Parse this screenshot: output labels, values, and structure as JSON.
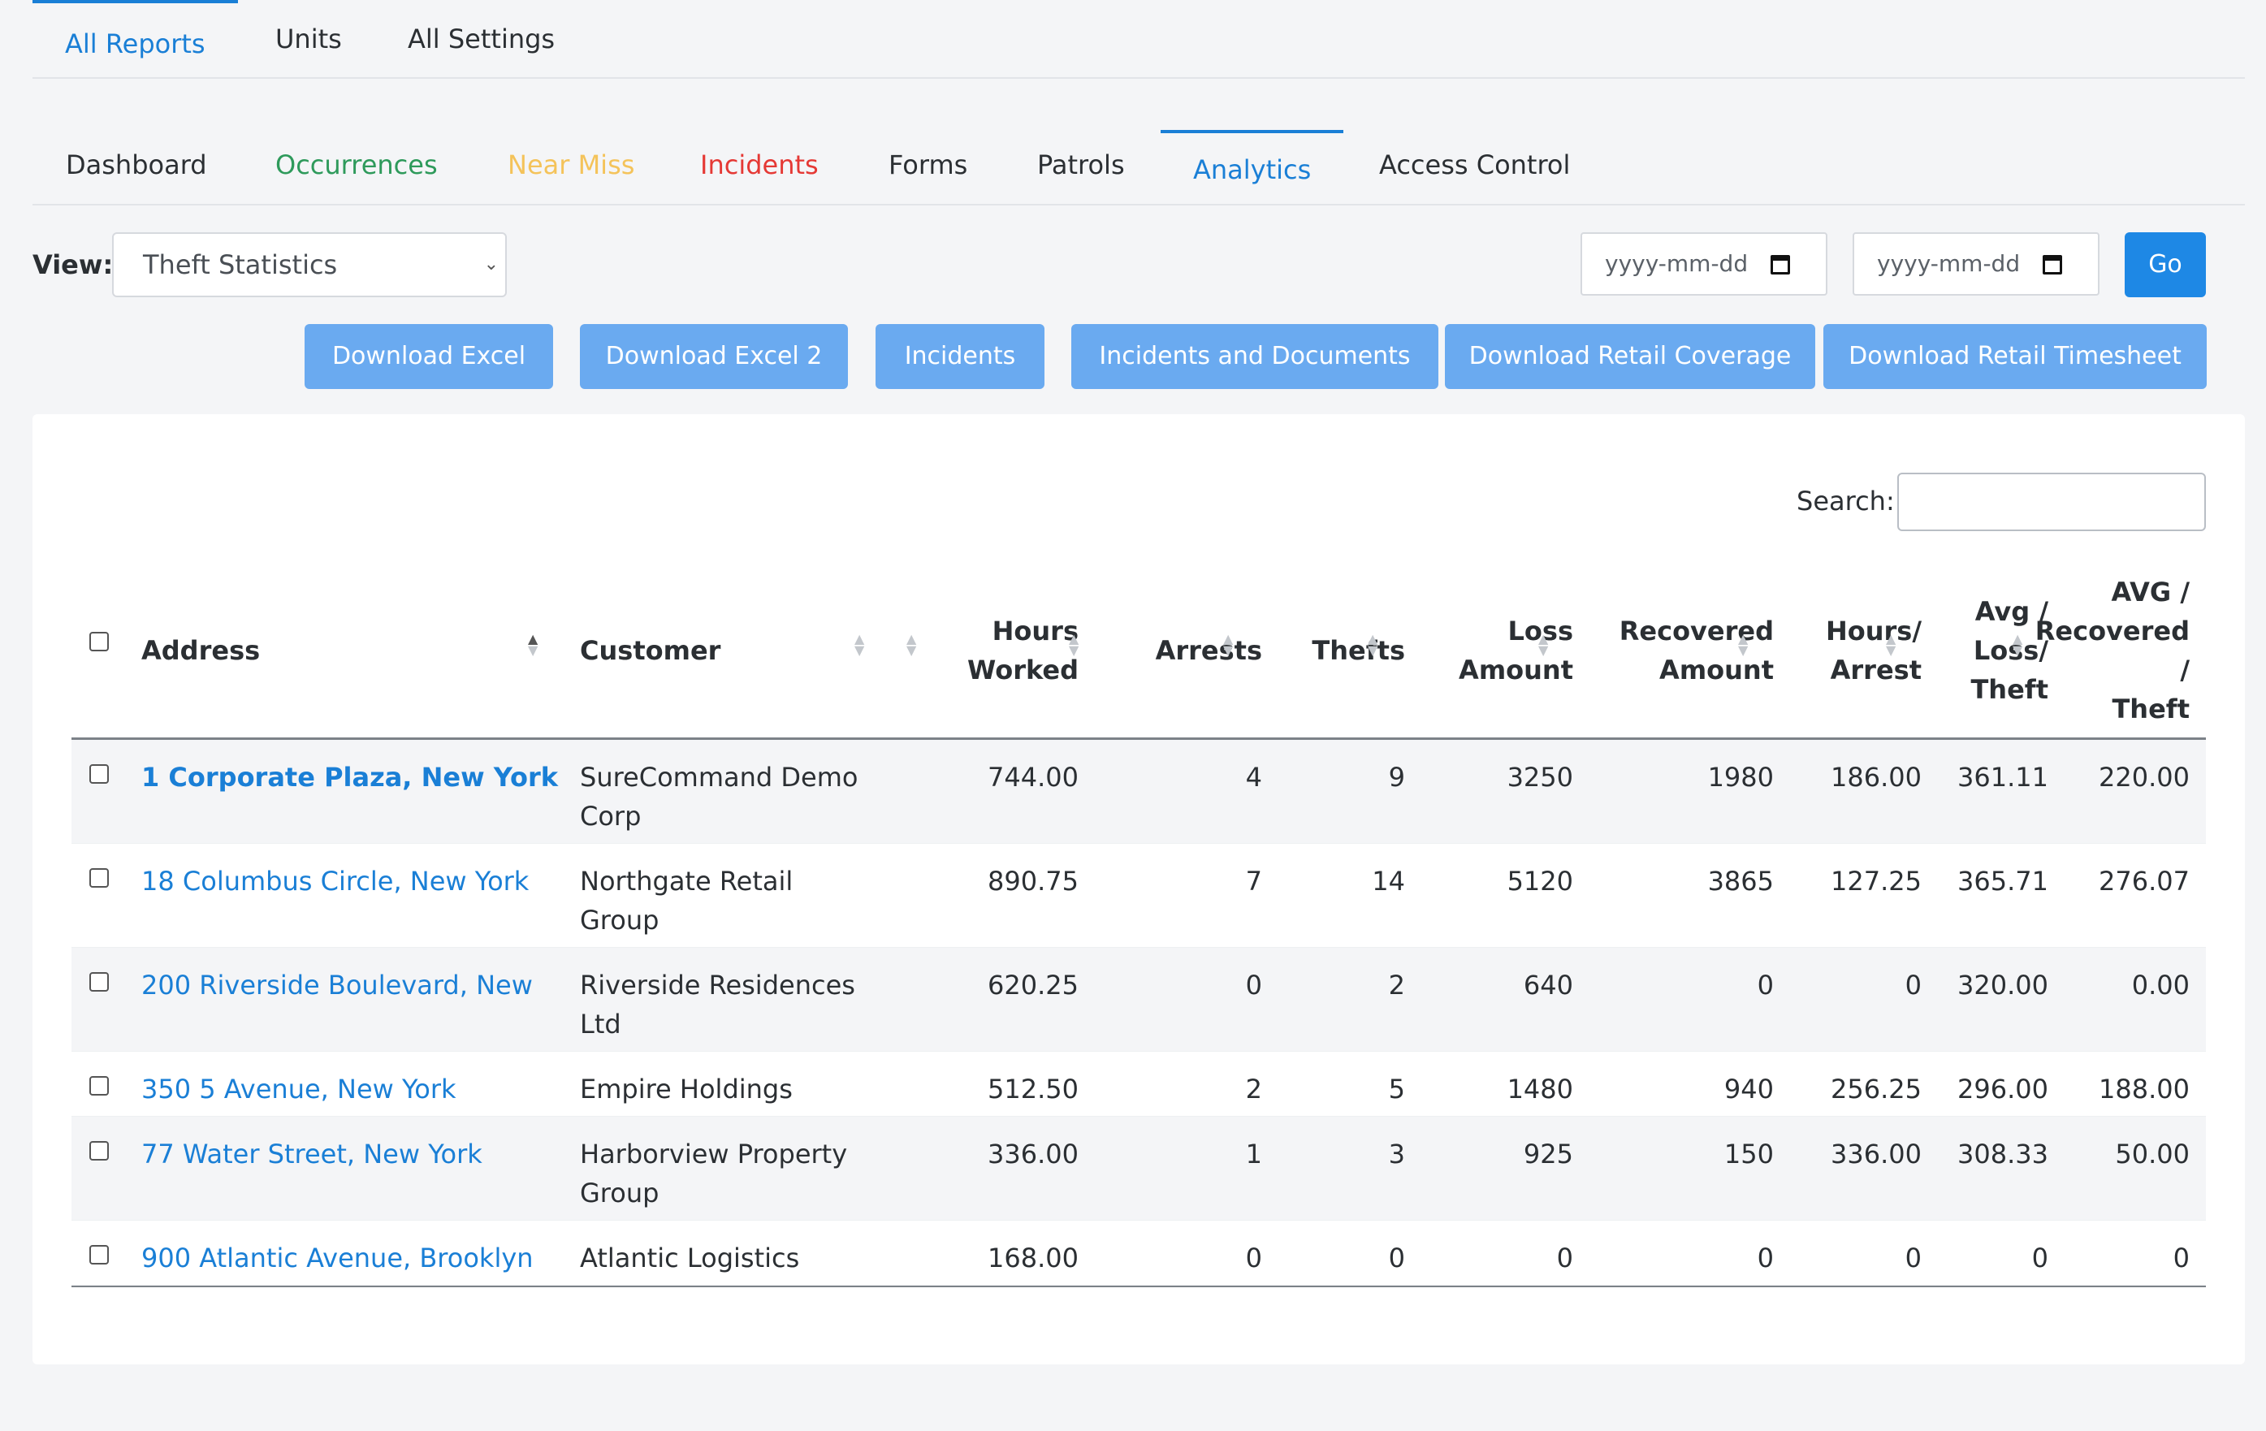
{
  "top_tabs": [
    {
      "label": "All Reports",
      "active": true
    },
    {
      "label": "Units",
      "active": false
    },
    {
      "label": "All Settings",
      "active": false
    }
  ],
  "sub_tabs": [
    {
      "label": "Dashboard",
      "color": "#2b2f33"
    },
    {
      "label": "Occurrences",
      "color": "#2e9a5b"
    },
    {
      "label": "Near Miss",
      "color": "#f4c35a"
    },
    {
      "label": "Incidents",
      "color": "#e53935"
    },
    {
      "label": "Forms",
      "color": "#2b2f33"
    },
    {
      "label": "Patrols",
      "color": "#2b2f33"
    },
    {
      "label": "Analytics",
      "color": "#1a7fd6",
      "active": true
    },
    {
      "label": "Access Control",
      "color": "#2b2f33"
    }
  ],
  "view": {
    "label": "View:",
    "selected": "Theft Statistics"
  },
  "date_from": {
    "placeholder": "yyyy-mm-dd"
  },
  "date_to": {
    "placeholder": "yyyy-mm-dd"
  },
  "go_label": "Go",
  "actions": [
    "Download Excel",
    "Download Excel 2",
    "Incidents",
    "Incidents and Documents",
    "Download Retail Coverage",
    "Download Retail Timesheet"
  ],
  "search": {
    "label": "Search:",
    "value": ""
  },
  "table": {
    "headers": {
      "address": "Address",
      "customer": "Customer",
      "hours_worked": [
        "Hours",
        "Worked"
      ],
      "arrests": "Arrests",
      "thefts": "Thefts",
      "loss_amount": [
        "Loss",
        "Amount"
      ],
      "recovered_amount": [
        "Recovered",
        "Amount"
      ],
      "hours_arrest": [
        "Hours/",
        "Arrest"
      ],
      "avg_loss_theft": [
        "Avg /",
        "Loss/",
        "Theft"
      ],
      "avg_recovered_theft": [
        "AVG /",
        "Recovered",
        "/",
        "Theft"
      ]
    },
    "rows": [
      {
        "address": "1 Corporate Plaza, New York",
        "customer": [
          "SureCommand Demo",
          "Corp"
        ],
        "hours": "744.00",
        "arrests": "4",
        "thefts": "9",
        "loss": "3250",
        "recovered": "1980",
        "hours_arrest": "186.00",
        "avg_loss": "361.11",
        "avg_recovered": "220.00"
      },
      {
        "address": "18 Columbus Circle, New York",
        "customer": [
          "Northgate Retail",
          "Group"
        ],
        "hours": "890.75",
        "arrests": "7",
        "thefts": "14",
        "loss": "5120",
        "recovered": "3865",
        "hours_arrest": "127.25",
        "avg_loss": "365.71",
        "avg_recovered": "276.07"
      },
      {
        "address": "200 Riverside Boulevard, New",
        "customer": [
          "Riverside Residences",
          "Ltd"
        ],
        "hours": "620.25",
        "arrests": "0",
        "thefts": "2",
        "loss": "640",
        "recovered": "0",
        "hours_arrest": "0",
        "avg_loss": "320.00",
        "avg_recovered": "0.00"
      },
      {
        "address": "350 5 Avenue, New York",
        "customer": [
          "Empire Holdings"
        ],
        "hours": "512.50",
        "arrests": "2",
        "thefts": "5",
        "loss": "1480",
        "recovered": "940",
        "hours_arrest": "256.25",
        "avg_loss": "296.00",
        "avg_recovered": "188.00"
      },
      {
        "address": "77 Water Street, New York",
        "customer": [
          "Harborview Property",
          "Group"
        ],
        "hours": "336.00",
        "arrests": "1",
        "thefts": "3",
        "loss": "925",
        "recovered": "150",
        "hours_arrest": "336.00",
        "avg_loss": "308.33",
        "avg_recovered": "50.00"
      },
      {
        "address": "900 Atlantic Avenue, Brooklyn",
        "customer": [
          "Atlantic Logistics"
        ],
        "hours": "168.00",
        "arrests": "0",
        "thefts": "0",
        "loss": "0",
        "recovered": "0",
        "hours_arrest": "0",
        "avg_loss": "0",
        "avg_recovered": "0"
      }
    ]
  }
}
